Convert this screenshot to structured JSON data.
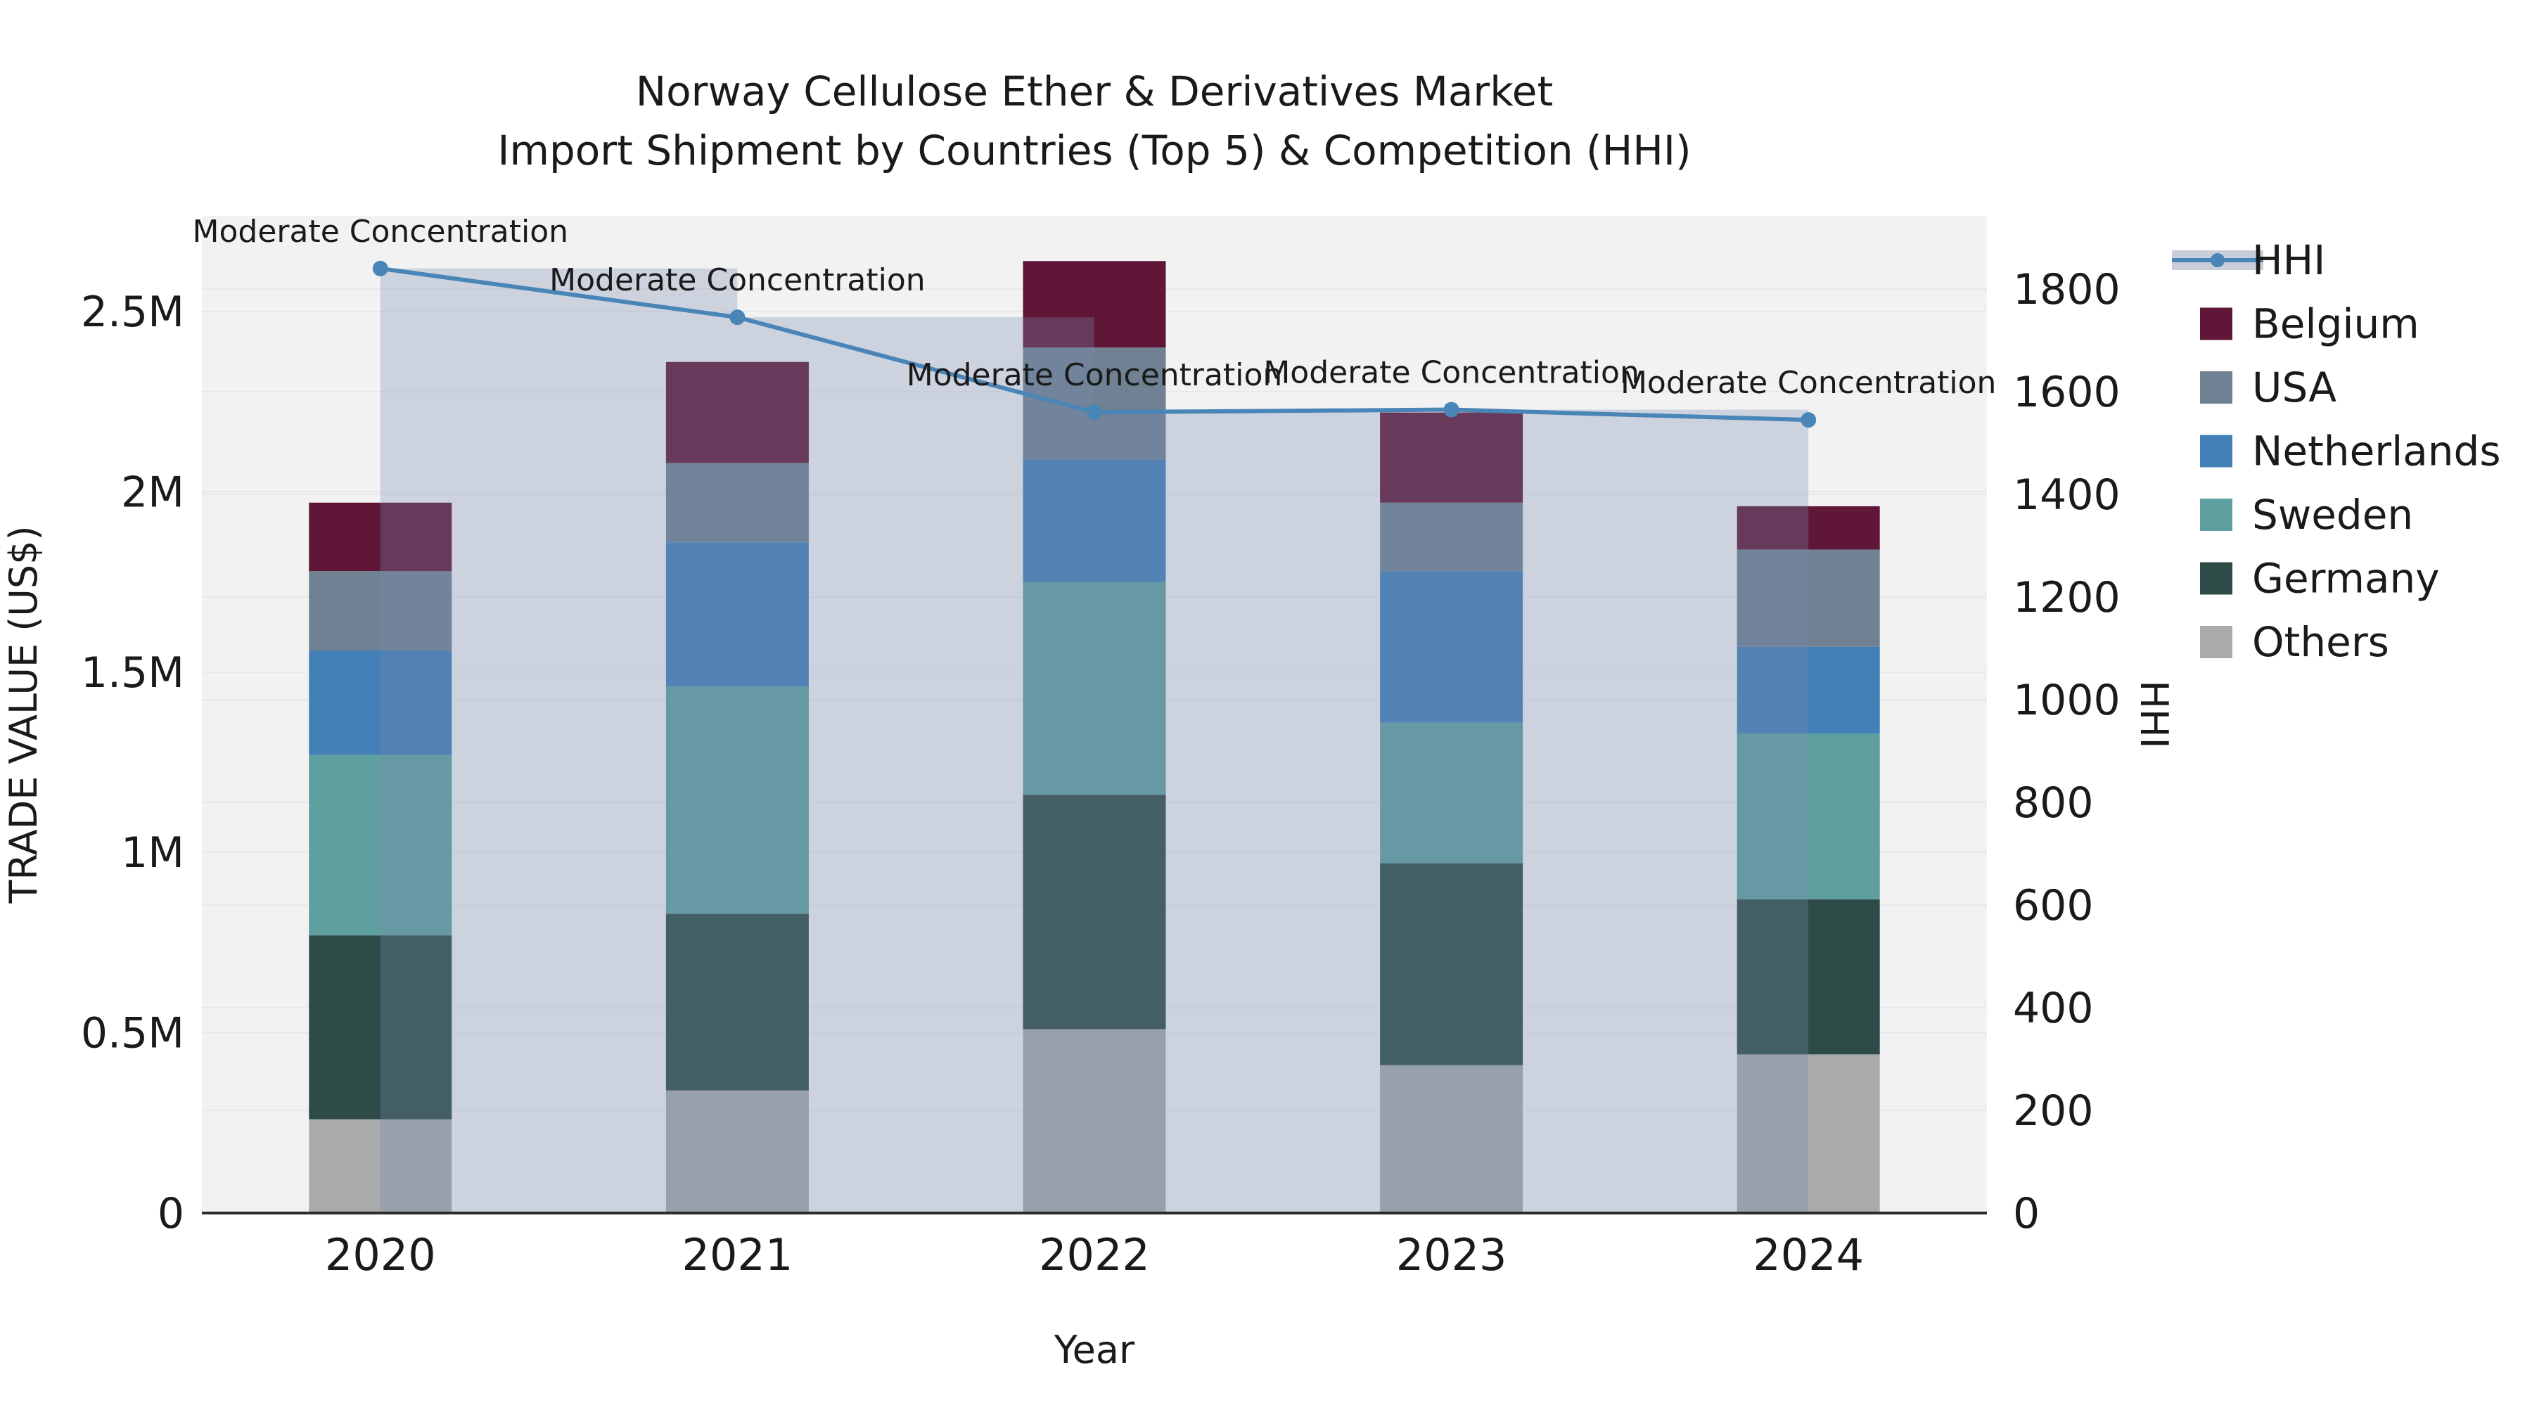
{
  "title": {
    "line1": "Norway Cellulose Ether & Derivatives Market",
    "line2": "Import Shipment by Countries (Top 5) & Competition (HHI)"
  },
  "axes": {
    "x_title": "Year",
    "y_left_title": "TRADE VALUE (US$)",
    "y_right_title": "HHI",
    "y_left_ticks": [
      {
        "label": "0",
        "value": 0
      },
      {
        "label": "0.5M",
        "value": 0.5
      },
      {
        "label": "1M",
        "value": 1.0
      },
      {
        "label": "1.5M",
        "value": 1.5
      },
      {
        "label": "2M",
        "value": 2.0
      },
      {
        "label": "2.5M",
        "value": 2.5
      }
    ],
    "y_right_ticks": [
      {
        "label": "0",
        "value": 0
      },
      {
        "label": "200",
        "value": 200
      },
      {
        "label": "400",
        "value": 400
      },
      {
        "label": "600",
        "value": 600
      },
      {
        "label": "800",
        "value": 800
      },
      {
        "label": "1000",
        "value": 1000
      },
      {
        "label": "1200",
        "value": 1200
      },
      {
        "label": "1400",
        "value": 1400
      },
      {
        "label": "1600",
        "value": 1600
      },
      {
        "label": "1800",
        "value": 1800
      }
    ]
  },
  "chart_data": {
    "type": "bar",
    "subtype": "stacked-bars-with-step-area-and-line",
    "categories": [
      "2020",
      "2021",
      "2022",
      "2023",
      "2024"
    ],
    "xlabel": "Year",
    "ylabel_left": "TRADE VALUE (US$)",
    "ylabel_right": "HHI",
    "ylim_left_millions": [
      0,
      2.77
    ],
    "ylim_right": [
      0,
      1942
    ],
    "grid": true,
    "legend_position": "right",
    "series": [
      {
        "name": "Belgium",
        "color": "#601737",
        "values_millions": [
          0.19,
          0.28,
          0.24,
          0.25,
          0.12
        ]
      },
      {
        "name": "USA",
        "color": "#6F8192",
        "values_millions": [
          0.22,
          0.22,
          0.31,
          0.19,
          0.27
        ]
      },
      {
        "name": "Netherlands",
        "color": "#4380B7",
        "values_millions": [
          0.29,
          0.4,
          0.34,
          0.42,
          0.24
        ]
      },
      {
        "name": "Sweden",
        "color": "#5F9FA0",
        "values_millions": [
          0.5,
          0.63,
          0.59,
          0.39,
          0.46
        ]
      },
      {
        "name": "Germany",
        "color": "#2E4B47",
        "values_millions": [
          0.51,
          0.49,
          0.65,
          0.56,
          0.43
        ]
      },
      {
        "name": "Others",
        "color": "#A8AAAC",
        "values_millions": [
          0.26,
          0.34,
          0.51,
          0.41,
          0.44
        ]
      }
    ],
    "totals_millions": [
      1.97,
      2.36,
      2.64,
      2.22,
      1.96
    ],
    "hhi_line": {
      "name": "HHI",
      "color": "#4A85B8",
      "area_fill": "rgba(120,140,175,0.30)",
      "values": [
        1840,
        1745,
        1560,
        1565,
        1545
      ]
    },
    "annotations": [
      {
        "text": "Moderate Concentration",
        "category": "2020"
      },
      {
        "text": "Moderate Concentration",
        "category": "2021"
      },
      {
        "text": "Moderate Concentration",
        "category": "2022"
      },
      {
        "text": "Moderate Concentration",
        "category": "2023"
      },
      {
        "text": "Moderate Concentration",
        "category": "2024"
      }
    ]
  },
  "legend": {
    "entries": [
      {
        "label": "HHI",
        "type": "line",
        "color": "#4A85B8",
        "band_color": "#C7CDD9"
      },
      {
        "label": "Belgium",
        "type": "swatch",
        "color": "#601737"
      },
      {
        "label": "USA",
        "type": "swatch",
        "color": "#6F8192"
      },
      {
        "label": "Netherlands",
        "type": "swatch",
        "color": "#4380B7"
      },
      {
        "label": "Sweden",
        "type": "swatch",
        "color": "#5F9FA0"
      },
      {
        "label": "Germany",
        "type": "swatch",
        "color": "#2E4B47"
      },
      {
        "label": "Others",
        "type": "swatch",
        "color": "#A8AAAC"
      }
    ]
  },
  "style": {
    "plot_bg": "#F2F2F3",
    "grid_color": "#E8E8EA",
    "spine_color": "#2B2B2B",
    "text_color": "#1a1a1a"
  }
}
